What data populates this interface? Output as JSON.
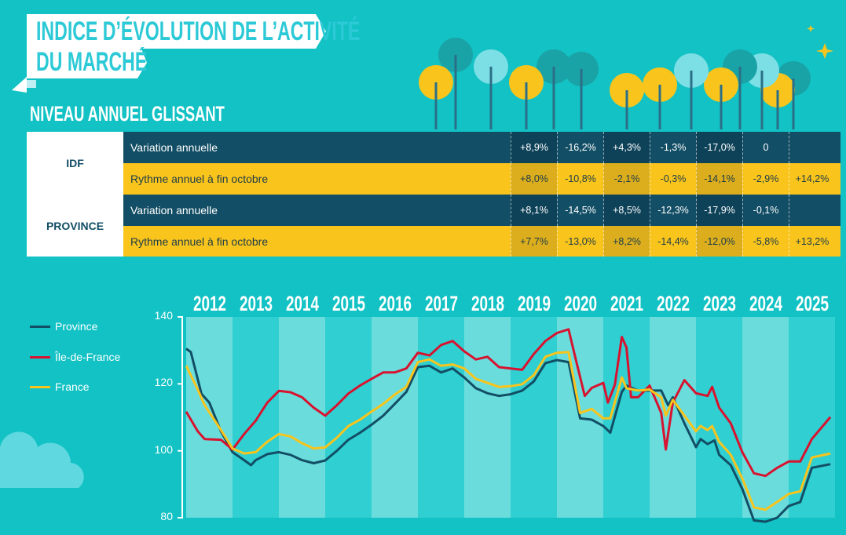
{
  "header": {
    "title_line1": "INDICE D’ÉVOLUTION DE L’ACTIVITÉ",
    "title_line2": "DU MARCHÉ",
    "subtitle": "NIVEAU ANNUEL GLISSANT"
  },
  "table": {
    "groups": [
      {
        "region": "IDF",
        "rows": [
          {
            "label": "Variation annuelle",
            "values": [
              "+8,9%",
              "-16,2%",
              "+4,3%",
              "-1,3%",
              "-17,0%",
              "0",
              ""
            ]
          },
          {
            "label": "Rythme annuel à fin octobre",
            "values": [
              "+8,0%",
              "-10,8%",
              "-2,1%",
              "-0,3%",
              "-14,1%",
              "-2,9%",
              "+14,2%"
            ]
          }
        ]
      },
      {
        "region": "PROVINCE",
        "rows": [
          {
            "label": "Variation annuelle",
            "values": [
              "+8,1%",
              "-14,5%",
              "+8,5%",
              "-12,3%",
              "-17,9%",
              "-0,1%",
              ""
            ]
          },
          {
            "label": "Rythme annuel à fin octobre",
            "values": [
              "+7,7%",
              "-13,0%",
              "+8,2%",
              "-14,4%",
              "-12,0%",
              "-5,8%",
              "+13,2%"
            ]
          }
        ]
      }
    ]
  },
  "colors": {
    "province": "#124e65",
    "idf": "#d7132f",
    "france": "#f9c41c",
    "dark": "#124e65",
    "yellow": "#f9c41c"
  },
  "chart_data": {
    "type": "line",
    "title": "",
    "xlabel": "",
    "ylabel": "",
    "xlim": [
      2012,
      2026
    ],
    "ylim": [
      80,
      140
    ],
    "yticks": [
      "140",
      "120",
      "100",
      "80"
    ],
    "years": [
      "2012",
      "2013",
      "2014",
      "2015",
      "2016",
      "2017",
      "2018",
      "2019",
      "2020",
      "2021",
      "2022",
      "2023",
      "2024",
      "2025"
    ],
    "legend_position": "left",
    "series": [
      {
        "name": "Province",
        "color": "#124e65",
        "points": [
          [
            2012,
            130.5
          ],
          [
            2012.1,
            129.5
          ],
          [
            2012.33,
            117
          ],
          [
            2012.5,
            114.4
          ],
          [
            2012.75,
            105.8
          ],
          [
            2013,
            99.6
          ],
          [
            2013.25,
            97.2
          ],
          [
            2013.4,
            95.7
          ],
          [
            2013.5,
            97.2
          ],
          [
            2013.75,
            99
          ],
          [
            2014,
            99.6
          ],
          [
            2014.25,
            98.8
          ],
          [
            2014.5,
            97.2
          ],
          [
            2014.75,
            96.3
          ],
          [
            2015,
            97.1
          ],
          [
            2015.25,
            100
          ],
          [
            2015.5,
            103.3
          ],
          [
            2015.75,
            105.4
          ],
          [
            2016,
            107.8
          ],
          [
            2016.25,
            110.5
          ],
          [
            2016.5,
            114
          ],
          [
            2016.75,
            117.6
          ],
          [
            2017,
            125
          ],
          [
            2017.25,
            125.4
          ],
          [
            2017.5,
            123.4
          ],
          [
            2017.75,
            124.6
          ],
          [
            2018,
            121.9
          ],
          [
            2018.25,
            118.7
          ],
          [
            2018.5,
            117.2
          ],
          [
            2018.75,
            116.4
          ],
          [
            2019,
            116.9
          ],
          [
            2019.25,
            118
          ],
          [
            2019.5,
            120.7
          ],
          [
            2019.75,
            126.2
          ],
          [
            2020,
            127.1
          ],
          [
            2020.25,
            126.5
          ],
          [
            2020.5,
            109.7
          ],
          [
            2020.75,
            109.3
          ],
          [
            2021,
            107.4
          ],
          [
            2021.15,
            105.4
          ],
          [
            2021.4,
            117.6
          ],
          [
            2021.5,
            119.5
          ],
          [
            2021.75,
            118
          ],
          [
            2022,
            118
          ],
          [
            2022.25,
            118
          ],
          [
            2022.4,
            113.6
          ],
          [
            2022.5,
            116
          ],
          [
            2022.75,
            108.2
          ],
          [
            2023,
            101.1
          ],
          [
            2023.1,
            103.5
          ],
          [
            2023.25,
            102
          ],
          [
            2023.4,
            103.1
          ],
          [
            2023.5,
            98.8
          ],
          [
            2023.75,
            95.7
          ],
          [
            2024,
            88.6
          ],
          [
            2024.25,
            79.2
          ],
          [
            2024.5,
            78.8
          ],
          [
            2024.75,
            80
          ],
          [
            2025,
            83.5
          ],
          [
            2025.25,
            84.7
          ],
          [
            2025.5,
            94.9
          ],
          [
            2025.9,
            96
          ]
        ]
      },
      {
        "name": "Île-de-France",
        "color": "#d7132f",
        "points": [
          [
            2012,
            111.7
          ],
          [
            2012.25,
            105.8
          ],
          [
            2012.4,
            103.5
          ],
          [
            2012.75,
            103.3
          ],
          [
            2013,
            100.4
          ],
          [
            2013.25,
            105
          ],
          [
            2013.5,
            109
          ],
          [
            2013.75,
            114.4
          ],
          [
            2014,
            117.9
          ],
          [
            2014.25,
            117.5
          ],
          [
            2014.5,
            116
          ],
          [
            2014.75,
            112.9
          ],
          [
            2015,
            110.5
          ],
          [
            2015.25,
            113.6
          ],
          [
            2015.5,
            117.1
          ],
          [
            2015.75,
            119.5
          ],
          [
            2016,
            121.5
          ],
          [
            2016.25,
            123.4
          ],
          [
            2016.5,
            123.4
          ],
          [
            2016.75,
            124.6
          ],
          [
            2017,
            129.3
          ],
          [
            2017.25,
            128.5
          ],
          [
            2017.5,
            131.6
          ],
          [
            2017.75,
            132.8
          ],
          [
            2018,
            129.7
          ],
          [
            2018.25,
            127.3
          ],
          [
            2018.5,
            128.1
          ],
          [
            2018.75,
            125
          ],
          [
            2019,
            124.6
          ],
          [
            2019.25,
            124.2
          ],
          [
            2019.5,
            128.9
          ],
          [
            2019.75,
            132.8
          ],
          [
            2020,
            135.2
          ],
          [
            2020.25,
            136.3
          ],
          [
            2020.4,
            127.7
          ],
          [
            2020.6,
            116.4
          ],
          [
            2020.75,
            118.8
          ],
          [
            2021,
            120.3
          ],
          [
            2021.1,
            114.4
          ],
          [
            2021.25,
            119.8
          ],
          [
            2021.4,
            134
          ],
          [
            2021.5,
            130.9
          ],
          [
            2021.6,
            116
          ],
          [
            2021.75,
            116
          ],
          [
            2022,
            119.5
          ],
          [
            2022.25,
            111.3
          ],
          [
            2022.35,
            100.4
          ],
          [
            2022.5,
            114.4
          ],
          [
            2022.75,
            121.1
          ],
          [
            2023,
            117.2
          ],
          [
            2023.25,
            116.4
          ],
          [
            2023.35,
            119.1
          ],
          [
            2023.5,
            112.9
          ],
          [
            2023.75,
            108.2
          ],
          [
            2024,
            99.6
          ],
          [
            2024.25,
            93.3
          ],
          [
            2024.5,
            92.5
          ],
          [
            2024.75,
            94.9
          ],
          [
            2025,
            96.8
          ],
          [
            2025.25,
            96.8
          ],
          [
            2025.5,
            103.5
          ],
          [
            2025.9,
            110.1
          ]
        ]
      },
      {
        "name": "France",
        "color": "#f9c41c",
        "points": [
          [
            2012,
            125.4
          ],
          [
            2012.25,
            118.3
          ],
          [
            2012.4,
            113.6
          ],
          [
            2012.75,
            106.2
          ],
          [
            2013,
            100.7
          ],
          [
            2013.25,
            99.2
          ],
          [
            2013.5,
            99.6
          ],
          [
            2013.75,
            102.7
          ],
          [
            2014,
            105
          ],
          [
            2014.25,
            104.3
          ],
          [
            2014.5,
            102.3
          ],
          [
            2014.75,
            100.7
          ],
          [
            2015,
            101
          ],
          [
            2015.25,
            103.9
          ],
          [
            2015.5,
            107.4
          ],
          [
            2015.75,
            109.3
          ],
          [
            2016,
            111.7
          ],
          [
            2016.25,
            114
          ],
          [
            2016.5,
            116.8
          ],
          [
            2016.75,
            119.1
          ],
          [
            2017,
            126.5
          ],
          [
            2017.25,
            127.3
          ],
          [
            2017.5,
            125.4
          ],
          [
            2017.75,
            125.8
          ],
          [
            2018,
            124.6
          ],
          [
            2018.25,
            121.5
          ],
          [
            2018.5,
            120.3
          ],
          [
            2018.75,
            119.1
          ],
          [
            2019,
            119.3
          ],
          [
            2019.25,
            119.9
          ],
          [
            2019.5,
            122.6
          ],
          [
            2019.75,
            128.1
          ],
          [
            2020,
            129.3
          ],
          [
            2020.25,
            129.5
          ],
          [
            2020.5,
            111.3
          ],
          [
            2020.75,
            112.5
          ],
          [
            2021,
            109.7
          ],
          [
            2021.15,
            109.7
          ],
          [
            2021.4,
            121.9
          ],
          [
            2021.5,
            118.7
          ],
          [
            2021.75,
            118
          ],
          [
            2022,
            118.3
          ],
          [
            2022.25,
            116
          ],
          [
            2022.35,
            110.5
          ],
          [
            2022.5,
            115.2
          ],
          [
            2022.75,
            110.5
          ],
          [
            2023,
            105.8
          ],
          [
            2023.1,
            107.4
          ],
          [
            2023.25,
            106.2
          ],
          [
            2023.35,
            107.4
          ],
          [
            2023.5,
            102.7
          ],
          [
            2023.75,
            98.8
          ],
          [
            2024,
            91.7
          ],
          [
            2024.25,
            83.1
          ],
          [
            2024.5,
            82.4
          ],
          [
            2024.75,
            84.7
          ],
          [
            2025,
            87.1
          ],
          [
            2025.25,
            87.9
          ],
          [
            2025.5,
            98
          ],
          [
            2025.9,
            99.2
          ]
        ]
      }
    ]
  }
}
